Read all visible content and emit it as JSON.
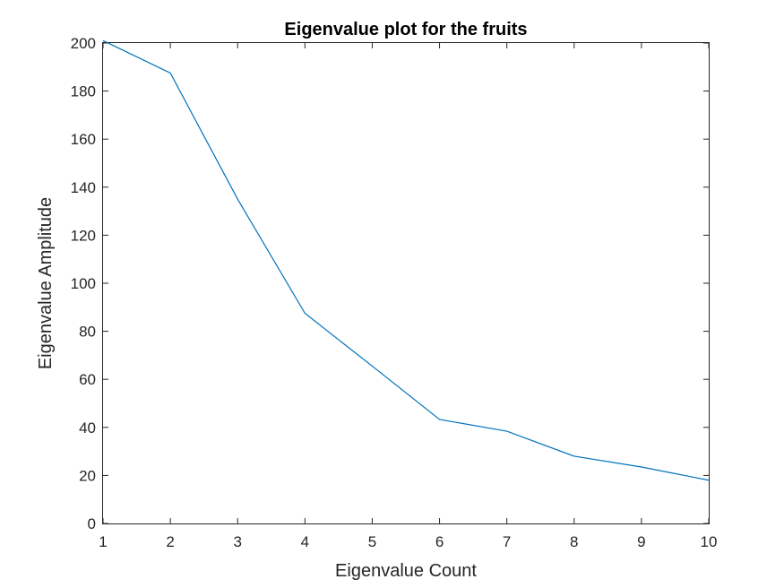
{
  "chart_data": {
    "type": "line",
    "title": "Eigenvalue plot for the fruits",
    "xlabel": "Eigenvalue Count",
    "ylabel": "Eigenvalue Amplitude",
    "xlim": [
      1,
      10
    ],
    "ylim": [
      0,
      200
    ],
    "xticks": [
      "1",
      "2",
      "3",
      "4",
      "5",
      "6",
      "7",
      "8",
      "9",
      "10"
    ],
    "yticks": [
      "0",
      "20",
      "40",
      "60",
      "80",
      "100",
      "120",
      "140",
      "160",
      "180",
      "200"
    ],
    "grid": false,
    "x": [
      1,
      2,
      3,
      4,
      5,
      6,
      7,
      8,
      9,
      10
    ],
    "series": [
      {
        "values": [
          201,
          187.5,
          135,
          87.5,
          65.5,
          43.3,
          38.4,
          28,
          23.5,
          18
        ],
        "color": "#0072BD"
      }
    ]
  }
}
